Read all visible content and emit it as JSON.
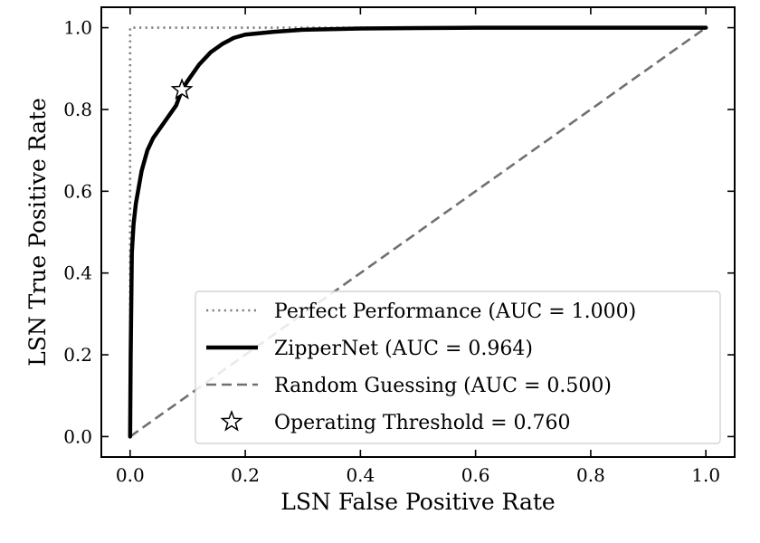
{
  "chart_data": {
    "type": "line",
    "xlabel": "LSN False Positive Rate",
    "ylabel": "LSN True Positive Rate",
    "xlim": [
      -0.05,
      1.05
    ],
    "ylim": [
      -0.05,
      1.05
    ],
    "xticks": [
      "0.0",
      "0.2",
      "0.4",
      "0.6",
      "0.8",
      "1.0"
    ],
    "yticks": [
      "0.0",
      "0.2",
      "0.4",
      "0.6",
      "0.8",
      "1.0"
    ],
    "grid": false,
    "legend_position": "bottom-right",
    "series": [
      {
        "name": "Perfect Performance (AUC = 1.000)",
        "style": "dotted",
        "color": "#808080",
        "x": [
          0.0,
          0.0,
          1.0
        ],
        "y": [
          0.0,
          1.0,
          1.0
        ]
      },
      {
        "name": "ZipperNet (AUC = 0.964)",
        "style": "solid",
        "color": "#000000",
        "x": [
          0.0,
          0.001,
          0.003,
          0.006,
          0.01,
          0.02,
          0.03,
          0.04,
          0.06,
          0.08,
          0.09,
          0.1,
          0.12,
          0.14,
          0.16,
          0.18,
          0.2,
          0.25,
          0.3,
          0.4,
          0.5,
          0.6,
          0.8,
          1.0
        ],
        "y": [
          0.0,
          0.2,
          0.45,
          0.52,
          0.57,
          0.65,
          0.7,
          0.73,
          0.77,
          0.81,
          0.848,
          0.87,
          0.91,
          0.94,
          0.96,
          0.975,
          0.983,
          0.99,
          0.995,
          0.998,
          0.999,
          1.0,
          1.0,
          1.0
        ]
      },
      {
        "name": "Random Guessing (AUC = 0.500)",
        "style": "dashed",
        "color": "#707070",
        "x": [
          0.0,
          1.0
        ],
        "y": [
          0.0,
          1.0
        ]
      }
    ],
    "markers": [
      {
        "name": "Operating Threshold = 0.760",
        "shape": "star",
        "x": 0.09,
        "y": 0.848
      }
    ]
  }
}
